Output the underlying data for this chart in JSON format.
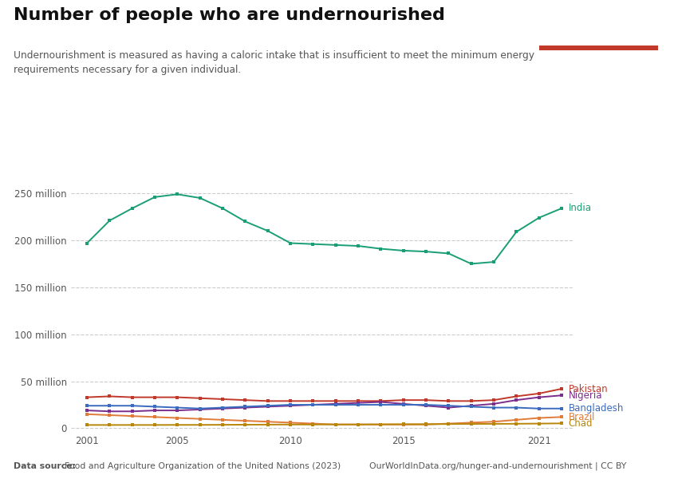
{
  "title": "Number of people who are undernourished",
  "subtitle": "Undernourishment is measured as having a caloric intake that is insufficient to meet the minimum energy\nrequirements necessary for a given individual.",
  "source_left": "Data source: ",
  "source_left2": "Food and Agriculture Organization of the United Nations (2023)",
  "source_right": "OurWorldInData.org/hunger-and-undernourishment | CC BY",
  "ytick_labels": [
    "0",
    "50 million",
    "100 million",
    "150 million",
    "200 million",
    "250 million"
  ],
  "ytick_values": [
    0,
    50,
    100,
    150,
    200,
    250
  ],
  "series": {
    "India": {
      "color": "#1a9e76",
      "years": [
        2001,
        2002,
        2003,
        2004,
        2005,
        2006,
        2007,
        2008,
        2009,
        2010,
        2011,
        2012,
        2013,
        2014,
        2015,
        2016,
        2017,
        2018,
        2019,
        2020,
        2021,
        2022
      ],
      "values": [
        197,
        221,
        234,
        246,
        249,
        245,
        234,
        220,
        210,
        197,
        196,
        195,
        194,
        191,
        189,
        188,
        186,
        175,
        177,
        209,
        224,
        234
      ]
    },
    "Pakistan": {
      "color": "#c0392b",
      "years": [
        2001,
        2002,
        2003,
        2004,
        2005,
        2006,
        2007,
        2008,
        2009,
        2010,
        2011,
        2012,
        2013,
        2014,
        2015,
        2016,
        2017,
        2018,
        2019,
        2020,
        2021,
        2022
      ],
      "values": [
        33,
        34,
        33,
        33,
        33,
        32,
        31,
        30,
        29,
        29,
        29,
        29,
        29,
        29,
        30,
        30,
        29,
        29,
        30,
        34,
        37,
        42
      ]
    },
    "Nigeria": {
      "color": "#7b2d8b",
      "years": [
        2001,
        2002,
        2003,
        2004,
        2005,
        2006,
        2007,
        2008,
        2009,
        2010,
        2011,
        2012,
        2013,
        2014,
        2015,
        2016,
        2017,
        2018,
        2019,
        2020,
        2021,
        2022
      ],
      "values": [
        19,
        18,
        18,
        19,
        19,
        20,
        21,
        22,
        23,
        24,
        25,
        26,
        27,
        28,
        26,
        24,
        22,
        24,
        26,
        30,
        33,
        35
      ]
    },
    "Bangladesh": {
      "color": "#3a6bbf",
      "years": [
        2001,
        2002,
        2003,
        2004,
        2005,
        2006,
        2007,
        2008,
        2009,
        2010,
        2011,
        2012,
        2013,
        2014,
        2015,
        2016,
        2017,
        2018,
        2019,
        2020,
        2021,
        2022
      ],
      "values": [
        24,
        24,
        24,
        23,
        22,
        21,
        22,
        23,
        24,
        25,
        25,
        25,
        25,
        25,
        25,
        25,
        24,
        23,
        22,
        22,
        21,
        21
      ]
    },
    "Brazil": {
      "color": "#e07b39",
      "years": [
        2001,
        2002,
        2003,
        2004,
        2005,
        2006,
        2007,
        2008,
        2009,
        2010,
        2011,
        2012,
        2013,
        2014,
        2015,
        2016,
        2017,
        2018,
        2019,
        2020,
        2021,
        2022
      ],
      "values": [
        15,
        14,
        13,
        12,
        11,
        10,
        9,
        8,
        7,
        6,
        5,
        4,
        4,
        4,
        4,
        4,
        5,
        6,
        7,
        9,
        11,
        12
      ]
    },
    "Chad": {
      "color": "#b8860b",
      "years": [
        2001,
        2002,
        2003,
        2004,
        2005,
        2006,
        2007,
        2008,
        2009,
        2010,
        2011,
        2012,
        2013,
        2014,
        2015,
        2016,
        2017,
        2018,
        2019,
        2020,
        2021,
        2022
      ],
      "values": [
        3.5,
        3.5,
        3.5,
        3.5,
        3.6,
        3.6,
        3.7,
        3.8,
        3.9,
        4.0,
        4.0,
        4.1,
        4.1,
        4.2,
        4.3,
        4.4,
        4.5,
        4.6,
        4.7,
        4.8,
        5.0,
        5.2
      ]
    }
  },
  "background_color": "#ffffff",
  "logo_bg": "#1c3a5e",
  "logo_red_bar": "#c0392b"
}
